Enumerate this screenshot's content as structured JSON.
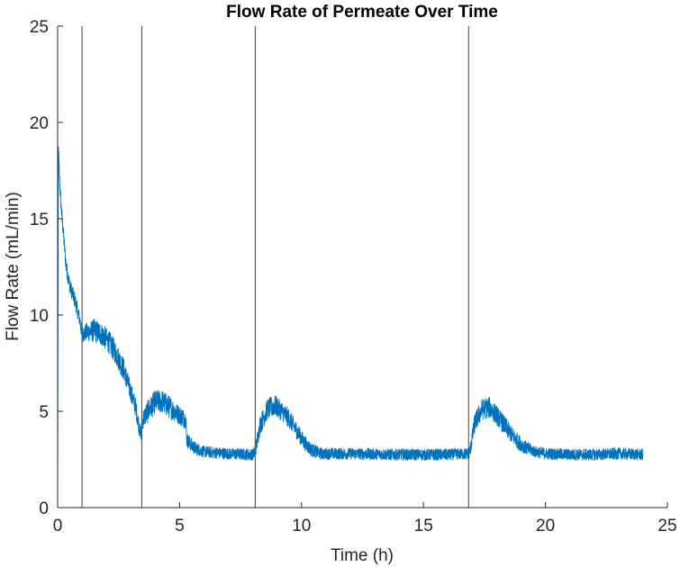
{
  "chart_data": {
    "type": "line",
    "title": "Flow Rate of Permeate Over Time",
    "xlabel": "Time (h)",
    "ylabel": "Flow Rate (mL/min)",
    "xlim": [
      0,
      25
    ],
    "ylim": [
      0,
      25
    ],
    "xticks": [
      0,
      5,
      10,
      15,
      20,
      25
    ],
    "yticks": [
      0,
      5,
      10,
      15,
      20,
      25
    ],
    "grid": false,
    "legend": "none",
    "series": [
      {
        "color": "#0072BD",
        "x": [
          0.0,
          0.03,
          0.08,
          0.15,
          0.25,
          0.35,
          0.5,
          0.7,
          0.9,
          1.0,
          1.2,
          1.5,
          1.8,
          2.1,
          2.4,
          2.7,
          3.0,
          3.2,
          3.4,
          3.5,
          3.7,
          4.0,
          4.3,
          4.6,
          4.9,
          5.1,
          5.25,
          5.3,
          5.6,
          6.0,
          7.0,
          8.0,
          8.1,
          8.3,
          8.6,
          8.9,
          9.2,
          9.5,
          9.8,
          10.1,
          10.4,
          10.8,
          12.0,
          14.0,
          16.0,
          16.8,
          16.9,
          17.1,
          17.4,
          17.7,
          18.0,
          18.3,
          18.6,
          18.9,
          19.2,
          19.6,
          20.0,
          21.0,
          22.0,
          23.0,
          24.0
        ],
        "y": [
          0.3,
          18.7,
          17.0,
          15.5,
          14.0,
          12.5,
          11.5,
          10.8,
          9.8,
          9.0,
          9.1,
          9.2,
          9.0,
          8.6,
          8.0,
          7.2,
          6.0,
          5.2,
          3.8,
          4.6,
          5.0,
          5.5,
          5.5,
          5.2,
          4.9,
          4.7,
          4.6,
          3.5,
          3.1,
          2.9,
          2.8,
          2.75,
          2.9,
          4.3,
          5.1,
          5.3,
          5.0,
          4.6,
          4.0,
          3.4,
          3.0,
          2.8,
          2.8,
          2.75,
          2.75,
          2.8,
          2.9,
          4.4,
          5.1,
          5.2,
          4.8,
          4.3,
          3.8,
          3.4,
          3.1,
          2.9,
          2.8,
          2.75,
          2.75,
          2.8,
          2.75
        ],
        "noise": [
          0,
          0.4,
          0.4,
          0.4,
          0.4,
          0.4,
          0.4,
          0.4,
          0.4,
          0.4,
          0.5,
          0.6,
          0.6,
          0.6,
          0.6,
          0.6,
          0.5,
          0.5,
          0.4,
          0.5,
          0.6,
          0.6,
          0.6,
          0.6,
          0.5,
          0.5,
          0.5,
          0.4,
          0.35,
          0.3,
          0.3,
          0.3,
          0.35,
          0.5,
          0.55,
          0.55,
          0.5,
          0.5,
          0.45,
          0.4,
          0.35,
          0.3,
          0.3,
          0.3,
          0.3,
          0.3,
          0.35,
          0.5,
          0.55,
          0.55,
          0.5,
          0.5,
          0.45,
          0.4,
          0.35,
          0.3,
          0.3,
          0.3,
          0.3,
          0.3,
          0.3
        ]
      }
    ],
    "vertical_lines": [
      1.0,
      3.45,
      8.1,
      16.85
    ]
  }
}
